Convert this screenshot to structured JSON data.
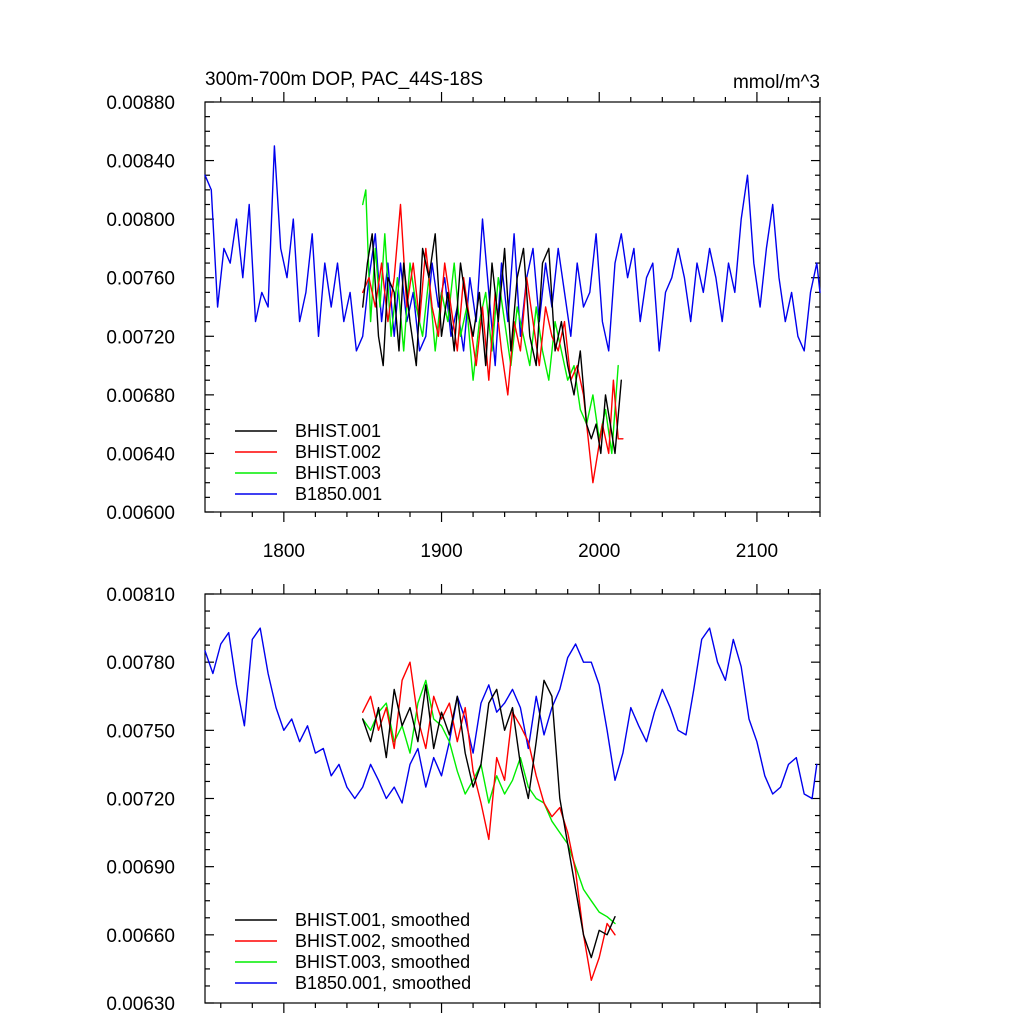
{
  "chart_data": [
    {
      "type": "line",
      "title": "300m-700m DOP, PAC_44S-18S",
      "subtitle": "mmol/m^3",
      "xlabel": "",
      "ylabel": "",
      "xlim": [
        1750,
        2140
      ],
      "ylim": [
        0.006,
        0.0088
      ],
      "xticks": [
        1800,
        1900,
        2000,
        2100
      ],
      "xtick_labels": [
        "1800",
        "1900",
        "2000",
        "2100"
      ],
      "yticks": [
        0.006,
        0.0064,
        0.0068,
        0.0072,
        0.0076,
        0.008,
        0.0084,
        0.0088
      ],
      "ytick_labels": [
        "0.00600",
        "0.00640",
        "0.00680",
        "0.00720",
        "0.00760",
        "0.00800",
        "0.00840",
        "0.00880"
      ],
      "grid": false,
      "legend_position": "bottom-left",
      "series": [
        {
          "name": "BHIST.001",
          "color": "#000000",
          "x": [
            1850,
            1853,
            1856,
            1860,
            1863,
            1866,
            1870,
            1873,
            1876,
            1880,
            1884,
            1888,
            1892,
            1896,
            1900,
            1904,
            1908,
            1912,
            1916,
            1920,
            1924,
            1928,
            1932,
            1936,
            1940,
            1944,
            1948,
            1952,
            1956,
            1960,
            1964,
            1968,
            1972,
            1976,
            1980,
            1984,
            1988,
            1992,
            1995,
            1998,
            2001,
            2004,
            2007,
            2010,
            2014
          ],
          "y": [
            0.0074,
            0.0077,
            0.0079,
            0.0072,
            0.007,
            0.0076,
            0.0075,
            0.0071,
            0.0077,
            0.0073,
            0.007,
            0.0078,
            0.0076,
            0.0079,
            0.0072,
            0.0075,
            0.0071,
            0.0077,
            0.0074,
            0.0072,
            0.0075,
            0.007,
            0.0077,
            0.0073,
            0.0078,
            0.0071,
            0.0076,
            0.0078,
            0.0072,
            0.007,
            0.0077,
            0.0078,
            0.0071,
            0.0073,
            0.007,
            0.0068,
            0.0071,
            0.0066,
            0.0065,
            0.0066,
            0.0064,
            0.0068,
            0.0066,
            0.0064,
            0.0069
          ]
        },
        {
          "name": "BHIST.002",
          "color": "#ff0000",
          "x": [
            1850,
            1854,
            1858,
            1862,
            1866,
            1870,
            1874,
            1878,
            1882,
            1886,
            1890,
            1894,
            1898,
            1902,
            1906,
            1910,
            1914,
            1918,
            1922,
            1926,
            1930,
            1934,
            1938,
            1942,
            1946,
            1950,
            1954,
            1958,
            1962,
            1966,
            1970,
            1974,
            1978,
            1982,
            1986,
            1990,
            1993,
            1996,
            1999,
            2002,
            2006,
            2009,
            2012,
            2015
          ],
          "y": [
            0.0075,
            0.0076,
            0.0074,
            0.0077,
            0.0073,
            0.0076,
            0.0081,
            0.0074,
            0.0077,
            0.0073,
            0.0078,
            0.0074,
            0.0072,
            0.0077,
            0.0074,
            0.0071,
            0.0076,
            0.0073,
            0.007,
            0.0074,
            0.0069,
            0.0075,
            0.0071,
            0.0068,
            0.0073,
            0.0071,
            0.0076,
            0.0073,
            0.007,
            0.0074,
            0.0072,
            0.0071,
            0.0073,
            0.0069,
            0.007,
            0.0068,
            0.0065,
            0.0062,
            0.0064,
            0.0066,
            0.0064,
            0.0069,
            0.0065,
            0.0065
          ]
        },
        {
          "name": "BHIST.003",
          "color": "#00ee00",
          "x": [
            1850,
            1852,
            1855,
            1858,
            1861,
            1864,
            1868,
            1872,
            1876,
            1880,
            1884,
            1888,
            1892,
            1896,
            1900,
            1904,
            1908,
            1912,
            1916,
            1920,
            1924,
            1928,
            1932,
            1936,
            1940,
            1944,
            1948,
            1952,
            1956,
            1960,
            1964,
            1968,
            1972,
            1976,
            1980,
            1984,
            1988,
            1992,
            1996,
            2000,
            2004,
            2008,
            2012
          ],
          "y": [
            0.0081,
            0.0082,
            0.0073,
            0.0078,
            0.0074,
            0.0079,
            0.0072,
            0.0076,
            0.0071,
            0.0077,
            0.0074,
            0.0072,
            0.0076,
            0.0071,
            0.0075,
            0.0073,
            0.0077,
            0.0072,
            0.0074,
            0.0069,
            0.0073,
            0.0075,
            0.0071,
            0.0076,
            0.0073,
            0.007,
            0.0074,
            0.0072,
            0.007,
            0.0074,
            0.0071,
            0.0069,
            0.0073,
            0.0071,
            0.0069,
            0.007,
            0.0067,
            0.0066,
            0.0068,
            0.0065,
            0.0067,
            0.0064,
            0.007
          ]
        },
        {
          "name": "B1850.001",
          "color": "#0000ee",
          "x": [
            1750,
            1754,
            1758,
            1762,
            1766,
            1770,
            1774,
            1778,
            1782,
            1786,
            1790,
            1794,
            1798,
            1802,
            1806,
            1810,
            1814,
            1818,
            1822,
            1826,
            1830,
            1834,
            1838,
            1842,
            1846,
            1850,
            1854,
            1858,
            1862,
            1866,
            1870,
            1874,
            1878,
            1882,
            1886,
            1890,
            1894,
            1898,
            1902,
            1906,
            1910,
            1914,
            1918,
            1922,
            1926,
            1930,
            1934,
            1938,
            1942,
            1946,
            1950,
            1954,
            1958,
            1962,
            1966,
            1970,
            1974,
            1978,
            1982,
            1986,
            1990,
            1994,
            1998,
            2002,
            2006,
            2010,
            2014,
            2018,
            2022,
            2026,
            2030,
            2034,
            2038,
            2042,
            2046,
            2050,
            2054,
            2058,
            2062,
            2066,
            2070,
            2074,
            2078,
            2082,
            2086,
            2090,
            2094,
            2098,
            2102,
            2106,
            2110,
            2114,
            2118,
            2122,
            2126,
            2130,
            2134,
            2138,
            2140
          ],
          "y": [
            0.0083,
            0.0082,
            0.0074,
            0.0078,
            0.0077,
            0.008,
            0.0076,
            0.0081,
            0.0073,
            0.0075,
            0.0074,
            0.0085,
            0.0078,
            0.0076,
            0.008,
            0.0073,
            0.0075,
            0.0079,
            0.0072,
            0.0077,
            0.0074,
            0.0077,
            0.0073,
            0.0075,
            0.0071,
            0.0072,
            0.0076,
            0.0079,
            0.0073,
            0.0077,
            0.0072,
            0.0077,
            0.0073,
            0.0075,
            0.0071,
            0.0072,
            0.0077,
            0.0074,
            0.0076,
            0.0072,
            0.0074,
            0.0071,
            0.0076,
            0.0073,
            0.008,
            0.0075,
            0.007,
            0.0077,
            0.0073,
            0.0079,
            0.0072,
            0.0076,
            0.0078,
            0.0073,
            0.0077,
            0.0074,
            0.0078,
            0.0075,
            0.0072,
            0.0077,
            0.0074,
            0.0075,
            0.0079,
            0.0073,
            0.0071,
            0.0077,
            0.0079,
            0.0076,
            0.0078,
            0.0073,
            0.0076,
            0.0077,
            0.0071,
            0.0075,
            0.0076,
            0.0078,
            0.0076,
            0.0073,
            0.0077,
            0.0075,
            0.0078,
            0.0076,
            0.0073,
            0.0077,
            0.0075,
            0.008,
            0.0083,
            0.0077,
            0.0074,
            0.0078,
            0.0081,
            0.0076,
            0.0073,
            0.0075,
            0.0072,
            0.0071,
            0.0075,
            0.0077,
            0.0075
          ]
        }
      ]
    },
    {
      "type": "line",
      "title": "",
      "xlabel": "",
      "ylabel": "",
      "xlim": [
        1750,
        2140
      ],
      "ylim": [
        0.0063,
        0.0081
      ],
      "xticks": [
        1800,
        1900,
        2000,
        2100
      ],
      "yticks": [
        0.0063,
        0.0066,
        0.0069,
        0.0072,
        0.0075,
        0.0078,
        0.0081
      ],
      "ytick_labels": [
        "0.00630",
        "0.00660",
        "0.00690",
        "0.00720",
        "0.00750",
        "0.00780",
        "0.00810"
      ],
      "grid": false,
      "legend_position": "bottom-left",
      "series": [
        {
          "name": "BHIST.001, smoothed",
          "color": "#000000",
          "x": [
            1850,
            1855,
            1860,
            1865,
            1870,
            1875,
            1880,
            1885,
            1890,
            1895,
            1900,
            1905,
            1910,
            1915,
            1920,
            1925,
            1930,
            1935,
            1940,
            1945,
            1950,
            1955,
            1960,
            1965,
            1970,
            1975,
            1980,
            1985,
            1990,
            1995,
            2000,
            2005,
            2010
          ],
          "y": [
            0.00755,
            0.00745,
            0.0076,
            0.00738,
            0.00768,
            0.00752,
            0.0076,
            0.00745,
            0.0077,
            0.00742,
            0.00758,
            0.00748,
            0.00765,
            0.0074,
            0.00725,
            0.00735,
            0.00762,
            0.00768,
            0.0075,
            0.0076,
            0.00735,
            0.0072,
            0.00745,
            0.00772,
            0.00765,
            0.0072,
            0.007,
            0.0068,
            0.0066,
            0.0065,
            0.00662,
            0.0066,
            0.00668
          ]
        },
        {
          "name": "BHIST.002, smoothed",
          "color": "#ff0000",
          "x": [
            1850,
            1855,
            1860,
            1865,
            1870,
            1875,
            1880,
            1885,
            1890,
            1895,
            1900,
            1905,
            1910,
            1915,
            1920,
            1925,
            1930,
            1935,
            1940,
            1945,
            1950,
            1955,
            1960,
            1965,
            1970,
            1975,
            1980,
            1985,
            1990,
            1995,
            2000,
            2005,
            2010
          ],
          "y": [
            0.00758,
            0.00765,
            0.0075,
            0.0076,
            0.00742,
            0.00772,
            0.0078,
            0.00755,
            0.00742,
            0.00765,
            0.00755,
            0.00762,
            0.00745,
            0.0076,
            0.00732,
            0.00718,
            0.00702,
            0.00738,
            0.00728,
            0.00758,
            0.00752,
            0.00745,
            0.0073,
            0.00718,
            0.00712,
            0.00716,
            0.00705,
            0.00688,
            0.0066,
            0.0064,
            0.0065,
            0.00665,
            0.0066
          ]
        },
        {
          "name": "BHIST.003, smoothed",
          "color": "#00ee00",
          "x": [
            1850,
            1855,
            1860,
            1865,
            1870,
            1875,
            1880,
            1885,
            1890,
            1895,
            1900,
            1905,
            1910,
            1915,
            1920,
            1925,
            1930,
            1935,
            1940,
            1945,
            1950,
            1955,
            1960,
            1965,
            1970,
            1975,
            1980,
            1985,
            1990,
            1995,
            2000,
            2005,
            2010
          ],
          "y": [
            0.00755,
            0.0075,
            0.00758,
            0.00762,
            0.00745,
            0.00752,
            0.0074,
            0.00762,
            0.00772,
            0.00755,
            0.00752,
            0.00745,
            0.00732,
            0.00722,
            0.00728,
            0.00735,
            0.00718,
            0.0073,
            0.00722,
            0.00728,
            0.00738,
            0.00725,
            0.0072,
            0.00718,
            0.0071,
            0.00705,
            0.007,
            0.0069,
            0.0068,
            0.00675,
            0.0067,
            0.00668,
            0.00665
          ]
        },
        {
          "name": "B1850.001, smoothed",
          "color": "#0000ee",
          "x": [
            1750,
            1755,
            1760,
            1765,
            1770,
            1775,
            1780,
            1785,
            1790,
            1795,
            1800,
            1805,
            1810,
            1815,
            1820,
            1825,
            1830,
            1835,
            1840,
            1845,
            1850,
            1855,
            1860,
            1865,
            1870,
            1875,
            1880,
            1885,
            1890,
            1895,
            1900,
            1905,
            1910,
            1915,
            1920,
            1925,
            1930,
            1935,
            1940,
            1945,
            1950,
            1955,
            1960,
            1965,
            1970,
            1975,
            1980,
            1985,
            1990,
            1995,
            2000,
            2005,
            2010,
            2015,
            2020,
            2025,
            2030,
            2035,
            2040,
            2045,
            2050,
            2055,
            2060,
            2065,
            2070,
            2075,
            2080,
            2085,
            2090,
            2095,
            2100,
            2105,
            2110,
            2115,
            2120,
            2125,
            2130,
            2135,
            2138
          ],
          "y": [
            0.00785,
            0.00775,
            0.00788,
            0.00793,
            0.0077,
            0.00752,
            0.0079,
            0.00795,
            0.00775,
            0.0076,
            0.0075,
            0.00755,
            0.00745,
            0.00752,
            0.0074,
            0.00742,
            0.0073,
            0.00735,
            0.00725,
            0.0072,
            0.00725,
            0.00735,
            0.00728,
            0.0072,
            0.00725,
            0.00718,
            0.00735,
            0.00742,
            0.00725,
            0.00738,
            0.0073,
            0.00745,
            0.00765,
            0.00755,
            0.0074,
            0.00762,
            0.0077,
            0.00758,
            0.00762,
            0.00768,
            0.0076,
            0.00742,
            0.00765,
            0.00748,
            0.0076,
            0.00768,
            0.00782,
            0.00788,
            0.0078,
            0.0078,
            0.0077,
            0.0075,
            0.00728,
            0.0074,
            0.0076,
            0.00752,
            0.00745,
            0.00758,
            0.00768,
            0.0076,
            0.0075,
            0.00748,
            0.00768,
            0.0079,
            0.00795,
            0.0078,
            0.00772,
            0.0079,
            0.00778,
            0.00755,
            0.00745,
            0.0073,
            0.00722,
            0.00725,
            0.00735,
            0.00738,
            0.00722,
            0.0072,
            0.00735
          ]
        }
      ]
    }
  ]
}
